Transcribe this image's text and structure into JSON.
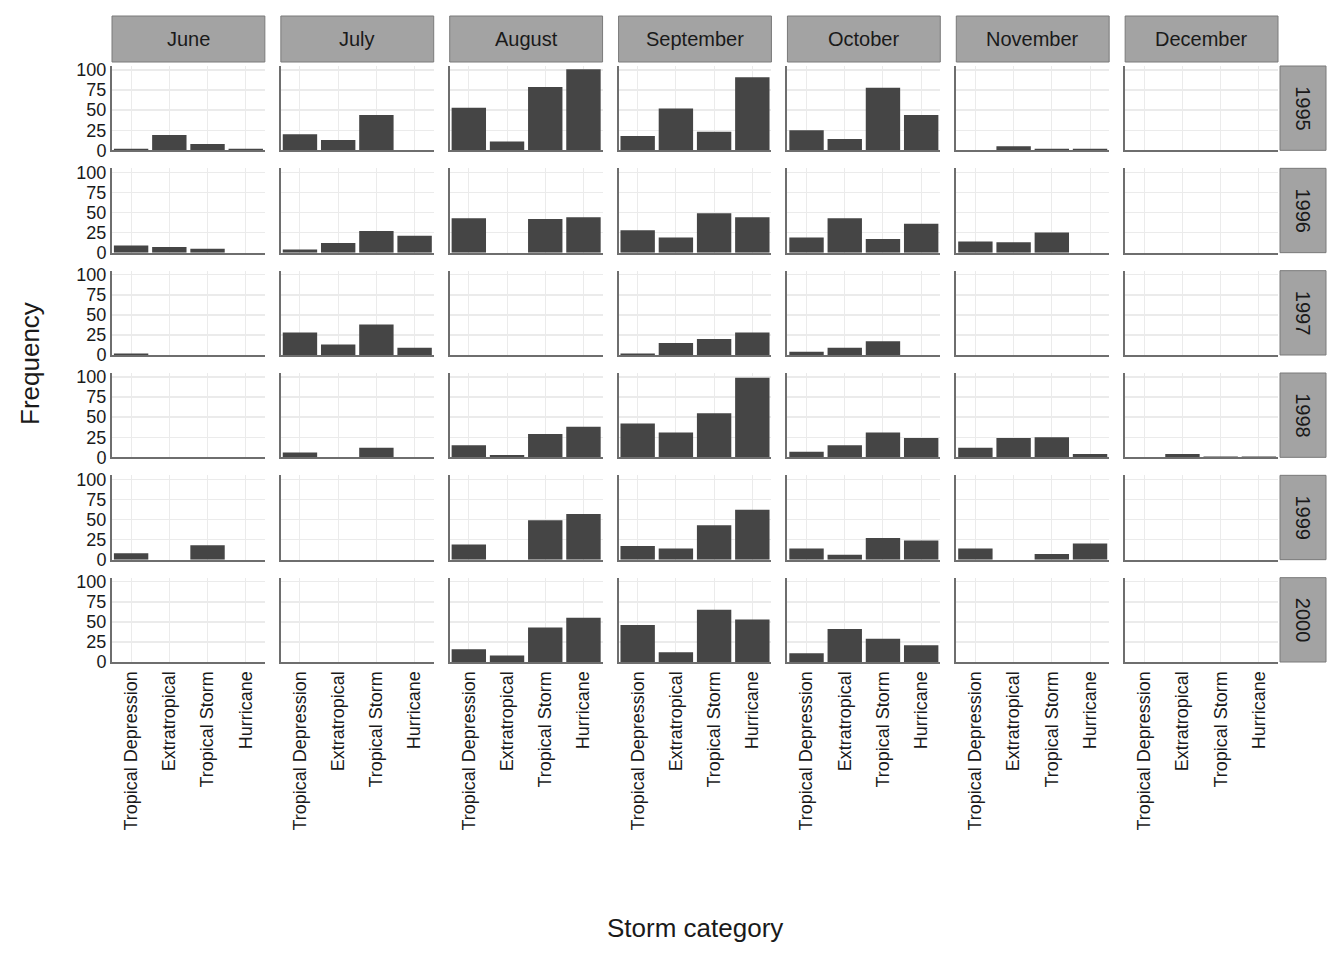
{
  "chart_data": {
    "type": "bar",
    "x_label": "Storm category",
    "y_label": "Frequency",
    "color": "#454545",
    "grid": true,
    "ylim": [
      0,
      105
    ],
    "yticks": [
      0,
      25,
      50,
      75,
      100
    ],
    "categories": [
      "Tropical Depression",
      "Extratropical",
      "Tropical Storm",
      "Hurricane"
    ],
    "facet_columns": [
      "June",
      "July",
      "August",
      "September",
      "October",
      "November",
      "December"
    ],
    "facet_rows": [
      "1995",
      "1996",
      "1997",
      "1998",
      "1999",
      "2000"
    ],
    "values": [
      [
        [
          2,
          19,
          8,
          2
        ],
        [
          20,
          13,
          44,
          0
        ],
        [
          53,
          11,
          79,
          101
        ],
        [
          18,
          52,
          23,
          91
        ],
        [
          25,
          14,
          78,
          44
        ],
        [
          0,
          5,
          2,
          2
        ],
        [
          0,
          0,
          0,
          0
        ]
      ],
      [
        [
          9,
          7,
          5,
          0
        ],
        [
          4,
          12,
          27,
          21
        ],
        [
          43,
          0,
          42,
          44
        ],
        [
          28,
          19,
          49,
          44
        ],
        [
          19,
          43,
          17,
          36
        ],
        [
          14,
          13,
          25,
          0
        ],
        [
          0,
          0,
          0,
          0
        ]
      ],
      [
        [
          2,
          0,
          0,
          0
        ],
        [
          28,
          13,
          38,
          9
        ],
        [
          0,
          0,
          0,
          0
        ],
        [
          2,
          15,
          20,
          28
        ],
        [
          4,
          9,
          17,
          0
        ],
        [
          0,
          0,
          0,
          0
        ],
        [
          0,
          0,
          0,
          0
        ]
      ],
      [
        [
          0,
          0,
          0,
          0
        ],
        [
          6,
          0,
          12,
          0
        ],
        [
          15,
          3,
          29,
          38
        ],
        [
          42,
          31,
          55,
          99
        ],
        [
          7,
          15,
          31,
          24
        ],
        [
          12,
          24,
          25,
          4
        ],
        [
          0,
          4,
          1,
          1
        ]
      ],
      [
        [
          8,
          0,
          18,
          0
        ],
        [
          0,
          0,
          0,
          0
        ],
        [
          19,
          0,
          49,
          57
        ],
        [
          17,
          14,
          43,
          62
        ],
        [
          14,
          6,
          27,
          24
        ],
        [
          14,
          0,
          7,
          20
        ],
        [
          0,
          0,
          0,
          0
        ]
      ],
      [
        [
          0,
          0,
          0,
          0
        ],
        [
          0,
          0,
          0,
          0
        ],
        [
          16,
          8,
          43,
          55
        ],
        [
          46,
          12,
          65,
          53
        ],
        [
          11,
          41,
          29,
          21
        ],
        [
          0,
          0,
          0,
          0
        ],
        [
          0,
          0,
          0,
          0
        ]
      ]
    ]
  }
}
